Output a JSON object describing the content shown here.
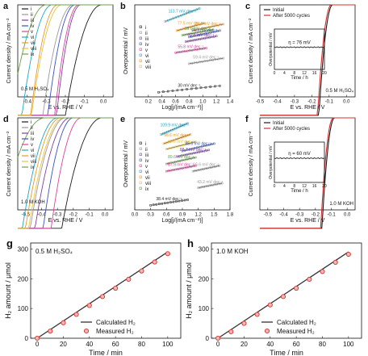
{
  "colors": {
    "i": "#1a1a1a",
    "ii": "#9a9a9a",
    "iii": "#7f3f9f",
    "iv": "#3a52c4",
    "v": "#d9439b",
    "vi": "#1aa8c8",
    "vii": "#e89a2a",
    "viii": "#e8c23a",
    "ix": "#6aa04a",
    "initial": "#1a1a1a",
    "after": "#d8302f",
    "measured": "#d8302f",
    "calc": "#333333"
  },
  "chart_data": [
    {
      "id": "a",
      "type": "line",
      "panel_label": "a",
      "xlabel": "E vs. RHE / V",
      "ylabel": "Current density / mA cm⁻²",
      "xlim": [
        -0.45,
        0.05
      ],
      "ylim": [
        -10,
        0
      ],
      "xticks": [
        -0.4,
        -0.3,
        -0.2,
        -0.1,
        0.0
      ],
      "xtick_labels": [
        "-0.4",
        "-0.3",
        "-0.2",
        "-0.1",
        "0.0"
      ],
      "annotation": "0.5 M H₂SO₄",
      "legend": [
        "i",
        "ii",
        "iii",
        "iv",
        "v",
        "vi",
        "vii",
        "viii",
        "ix"
      ],
      "series": [
        {
          "name": "i",
          "onset": -0.01,
          "k": 0.06
        },
        {
          "name": "ii",
          "onset": -0.16,
          "k": 0.05
        },
        {
          "name": "iii",
          "onset": -0.12,
          "k": 0.04
        },
        {
          "name": "iv",
          "onset": -0.15,
          "k": 0.045
        },
        {
          "name": "v",
          "onset": -0.13,
          "k": 0.04
        },
        {
          "name": "vi",
          "onset": -0.27,
          "k": 0.05
        },
        {
          "name": "vii",
          "onset": -0.24,
          "k": 0.045
        },
        {
          "name": "viii",
          "onset": -0.22,
          "k": 0.05
        },
        {
          "name": "ix",
          "onset": -0.3,
          "k": 0.06
        }
      ]
    },
    {
      "id": "b",
      "type": "scatter",
      "panel_label": "b",
      "xlabel": "Log[j/(mA cm⁻²)]",
      "ylabel": "Overpotential / mV",
      "xlim": [
        0.0,
        1.4
      ],
      "ylim": [
        0,
        1
      ],
      "xticks": [
        0.2,
        0.4,
        0.6,
        0.8,
        1.0,
        1.2,
        1.4
      ],
      "xtick_labels": [
        "0.2",
        "0.4",
        "0.6",
        "0.8",
        "1.0",
        "1.2",
        "1.4"
      ],
      "legend": [
        "i",
        "ii",
        "iii",
        "iv",
        "v",
        "vi",
        "vii",
        "viii"
      ],
      "series": [
        {
          "name": "c1",
          "slope_label": "113.7 mV dec⁻¹",
          "color": "vi",
          "x0": 0.45,
          "x1": 0.95,
          "y0": 0.82,
          "y1": 0.96
        },
        {
          "name": "c2",
          "slope_label": "77.5 mV dec⁻¹",
          "color": "vii",
          "x0": 0.62,
          "x1": 1.02,
          "y0": 0.72,
          "y1": 0.8
        },
        {
          "name": "c3",
          "slope_label": "76.2 mV dec⁻¹",
          "color": "vii",
          "x0": 0.85,
          "x1": 1.3,
          "y0": 0.72,
          "y1": 0.79
        },
        {
          "name": "c4",
          "slope_label": "74.3 mV dec⁻¹",
          "color": "iv",
          "x0": 0.8,
          "x1": 1.25,
          "y0": 0.65,
          "y1": 0.72
        },
        {
          "name": "c5",
          "slope_label": "65.0 mV dec⁻¹",
          "color": "ix",
          "x0": 0.7,
          "x1": 1.15,
          "y0": 0.67,
          "y1": 0.73
        },
        {
          "name": "c6",
          "slope_label": "52.5 mV dec⁻¹",
          "color": "iii",
          "x0": 0.75,
          "x1": 1.2,
          "y0": 0.6,
          "y1": 0.66
        },
        {
          "name": "c7",
          "slope_label": "55.8 mV dec⁻¹",
          "color": "v",
          "x0": 0.6,
          "x1": 1.05,
          "y0": 0.48,
          "y1": 0.53
        },
        {
          "name": "c8",
          "slope_label": "59.4 mV dec⁻¹",
          "color": "ii",
          "x0": 0.8,
          "x1": 1.3,
          "y0": 0.36,
          "y1": 0.42
        },
        {
          "name": "c9",
          "slope_label": "30 mV dec⁻¹",
          "color": "i",
          "x0": 0.35,
          "x1": 1.25,
          "y0": 0.05,
          "y1": 0.12
        }
      ]
    },
    {
      "id": "c",
      "type": "line",
      "panel_label": "c",
      "xlabel": "E vs. RHE / V",
      "ylabel": "Current density / mA cm⁻²",
      "xlim": [
        -0.5,
        0.05
      ],
      "ylim": [
        -10,
        0
      ],
      "xticks": [
        -0.5,
        -0.4,
        -0.3,
        -0.2,
        -0.1,
        0.0
      ],
      "xtick_labels": [
        "-0.5",
        "-0.4",
        "-0.3",
        "-0.2",
        "-0.1",
        "0.0"
      ],
      "legend": [
        "Initial",
        "After 5000 cycles"
      ],
      "annotation": "0.5 M H₂SO₄",
      "inset": {
        "xlabel": "Time / h",
        "ylabel": "Overpotential / mV",
        "xticks": [
          "0",
          "4",
          "8",
          "12",
          "16",
          "20"
        ],
        "text": "η = 76 mV",
        "value_fraction": 0.55
      }
    },
    {
      "id": "d",
      "type": "line",
      "panel_label": "d",
      "xlabel": "E vs. RHE / V",
      "ylabel": "Current density / mA cm⁻²",
      "xlim": [
        -0.55,
        0.05
      ],
      "ylim": [
        -10,
        0
      ],
      "xticks": [
        -0.5,
        -0.4,
        -0.3,
        -0.2,
        -0.1,
        0.0
      ],
      "xtick_labels": [
        "-0.5",
        "-0.4",
        "-0.3",
        "-0.2",
        "-0.1",
        "0.0"
      ],
      "annotation": "1.0 M KOH",
      "legend": [
        "i",
        "ii",
        "iii",
        "iv",
        "v",
        "vi",
        "vii",
        "viii",
        "ix"
      ],
      "series": [
        {
          "name": "i",
          "onset": -0.02,
          "k": 0.08
        },
        {
          "name": "ii",
          "onset": -0.25,
          "k": 0.07
        },
        {
          "name": "iii",
          "onset": -0.22,
          "k": 0.07
        },
        {
          "name": "iv",
          "onset": -0.2,
          "k": 0.06
        },
        {
          "name": "v",
          "onset": -0.15,
          "k": 0.06
        },
        {
          "name": "vi",
          "onset": -0.3,
          "k": 0.07
        },
        {
          "name": "vii",
          "onset": -0.28,
          "k": 0.07
        },
        {
          "name": "viii",
          "onset": -0.26,
          "k": 0.07
        },
        {
          "name": "ix",
          "onset": -0.38,
          "k": 0.09
        }
      ]
    },
    {
      "id": "e",
      "type": "scatter",
      "panel_label": "e",
      "xlabel": "Log[j/(mA cm⁻²)]",
      "ylabel": "Overpotential / mV",
      "xlim": [
        0.0,
        1.8
      ],
      "ylim": [
        0,
        1
      ],
      "xticks": [
        0.0,
        0.3,
        0.6,
        0.9,
        1.2,
        1.5,
        1.8
      ],
      "xtick_labels": [
        "0.0",
        "0.3",
        "0.6",
        "0.9",
        "1.2",
        "1.5",
        "1.8"
      ],
      "legend": [
        "i",
        "ii",
        "iii",
        "iv",
        "v",
        "vi",
        "vii",
        "viii",
        "ix"
      ],
      "series": [
        {
          "name": "c1",
          "slope_label": "109.9 mV dec⁻¹",
          "color": "vi",
          "x0": 0.5,
          "x1": 1.0,
          "y0": 0.82,
          "y1": 0.94
        },
        {
          "name": "c2",
          "slope_label": "98.6 mV dec⁻¹",
          "color": "vii",
          "x0": 0.55,
          "x1": 1.05,
          "y0": 0.72,
          "y1": 0.82
        },
        {
          "name": "c3",
          "slope_label": "92.6 mV dec⁻¹",
          "color": "viii",
          "x0": 0.6,
          "x1": 1.15,
          "y0": 0.66,
          "y1": 0.74
        },
        {
          "name": "c4",
          "slope_label": "85.5 mV dec⁻¹",
          "color": "iv",
          "x0": 0.9,
          "x1": 1.5,
          "y0": 0.64,
          "y1": 0.72
        },
        {
          "name": "c5",
          "slope_label": "88.7 mV dec⁻¹",
          "color": "iii",
          "x0": 0.8,
          "x1": 1.4,
          "y0": 0.58,
          "y1": 0.65
        },
        {
          "name": "c6",
          "slope_label": "89.6 mV dec⁻¹",
          "color": "ix",
          "x0": 0.6,
          "x1": 1.15,
          "y0": 0.5,
          "y1": 0.57
        },
        {
          "name": "c7",
          "slope_label": "87.9 mV dec⁻¹",
          "color": "v",
          "x0": 0.6,
          "x1": 1.15,
          "y0": 0.42,
          "y1": 0.48
        },
        {
          "name": "c8",
          "slope_label": "66.6 mV dec⁻¹",
          "color": "ii",
          "x0": 1.1,
          "x1": 1.6,
          "y0": 0.42,
          "y1": 0.48
        },
        {
          "name": "c9",
          "slope_label": "43.2 mV dec⁻¹",
          "color": "ii",
          "x0": 1.2,
          "x1": 1.65,
          "y0": 0.24,
          "y1": 0.29
        },
        {
          "name": "c10",
          "slope_label": "38.4 mV dec⁻¹",
          "color": "i",
          "x0": 0.3,
          "x1": 1.0,
          "y0": 0.05,
          "y1": 0.11
        }
      ]
    },
    {
      "id": "f",
      "type": "line",
      "panel_label": "f",
      "xlabel": "E vs. RHE / V",
      "ylabel": "Current density / mA cm⁻²",
      "xlim": [
        -0.55,
        0.05
      ],
      "ylim": [
        -10,
        0
      ],
      "xticks": [
        -0.5,
        -0.4,
        -0.3,
        -0.2,
        -0.1,
        0.0
      ],
      "xtick_labels": [
        "-0.5",
        "-0.4",
        "-0.3",
        "-0.2",
        "-0.1",
        "0.0"
      ],
      "legend": [
        "Initial",
        "After 5000 cycles"
      ],
      "annotation": "1.0 M KOH",
      "inset": {
        "xlabel": "Time / h",
        "ylabel": "Overpotential / mV",
        "xticks": [
          "0",
          "4",
          "8",
          "12",
          "16",
          "20"
        ],
        "text": "η = 60 mV",
        "value_fraction": 0.6
      }
    },
    {
      "id": "g",
      "type": "scatter",
      "panel_label": "g",
      "xlabel": "Time / min",
      "ylabel": "H₂ amount / μmol",
      "xlim": [
        -5,
        110
      ],
      "ylim": [
        0,
        320
      ],
      "xticks": [
        0,
        20,
        40,
        60,
        80,
        100
      ],
      "yticks": [
        0,
        100,
        200,
        300
      ],
      "annotation": "0.5 M H₂SO₄",
      "legend": [
        "Calculated H₂",
        "Measured H₂"
      ],
      "calculated": {
        "x": [
          0,
          100
        ],
        "y": [
          0,
          290
        ]
      },
      "measured": {
        "x": [
          0,
          10,
          20,
          30,
          40,
          50,
          60,
          70,
          80,
          90,
          100
        ],
        "y": [
          0,
          24,
          52,
          80,
          110,
          140,
          168,
          198,
          226,
          256,
          284
        ]
      }
    },
    {
      "id": "h",
      "type": "scatter",
      "panel_label": "h",
      "xlabel": "Time / min",
      "ylabel": "H₂ amount / μmol",
      "xlim": [
        -5,
        110
      ],
      "ylim": [
        0,
        320
      ],
      "xticks": [
        0,
        20,
        40,
        60,
        80,
        100
      ],
      "yticks": [
        0,
        100,
        200,
        300
      ],
      "annotation": "1.0 M KOH",
      "legend": [
        "Calculated H₂",
        "Measured H₂"
      ],
      "calculated": {
        "x": [
          0,
          100
        ],
        "y": [
          0,
          290
        ]
      },
      "measured": {
        "x": [
          0,
          10,
          20,
          30,
          40,
          50,
          60,
          70,
          80,
          90,
          100
        ],
        "y": [
          0,
          22,
          50,
          80,
          112,
          140,
          168,
          198,
          224,
          255,
          282
        ]
      }
    }
  ]
}
